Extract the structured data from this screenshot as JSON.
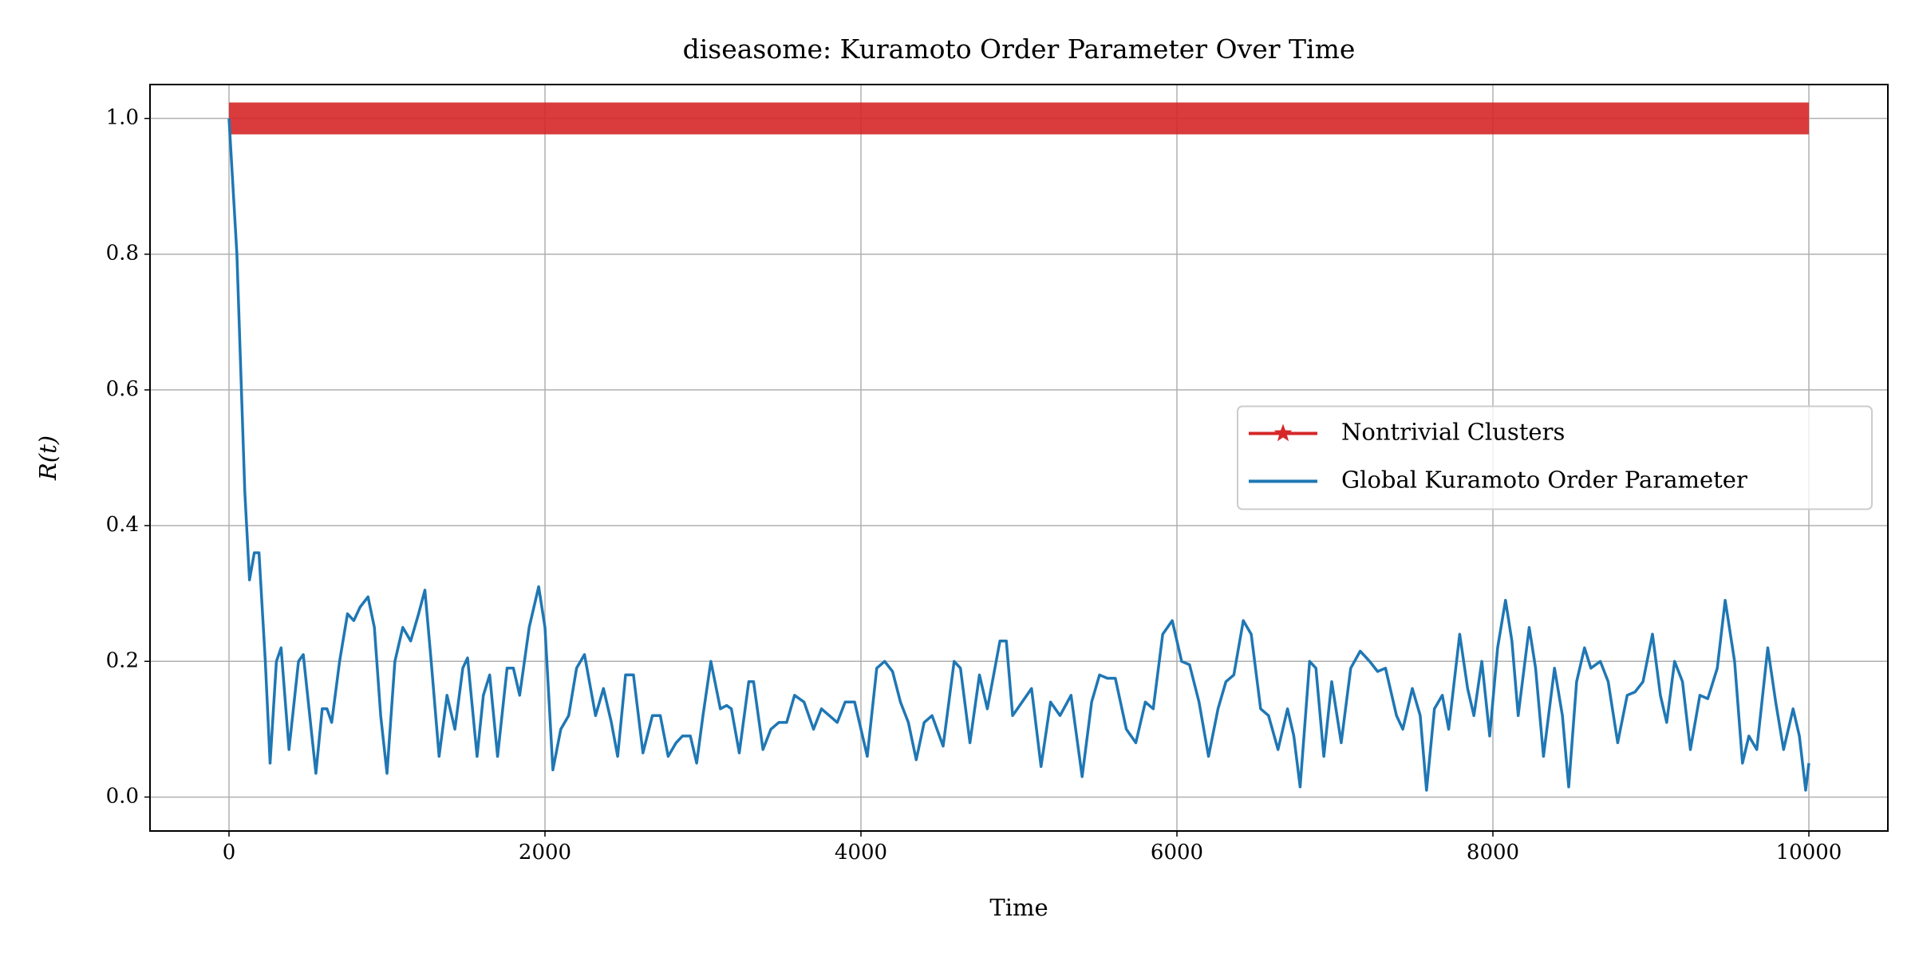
{
  "chart_data": {
    "type": "line",
    "title": "diseasome: Kuramoto Order Parameter Over Time",
    "xlabel": "Time",
    "ylabel": "R(t)",
    "xlim": [
      -500,
      10500
    ],
    "xticks": [
      0,
      2000,
      4000,
      6000,
      8000,
      10000
    ],
    "ylim": [
      -0.05,
      1.05
    ],
    "yticks": [
      {
        "value": 0,
        "label": "0.0"
      },
      0.2,
      0.4,
      0.6,
      0.8,
      {
        "value": 1,
        "label": "1.0"
      }
    ],
    "grid": true,
    "legend": "center right",
    "series": [
      {
        "name": "Nontrivial Clusters",
        "color": "#d62728",
        "x": [
          0,
          10000
        ],
        "values": [
          1,
          1
        ]
      },
      {
        "name": "Global Kuramoto Order Parameter",
        "color": "#1f77b4",
        "x": [
          0,
          50,
          100,
          130,
          160,
          190,
          230,
          260,
          300,
          330,
          380,
          440,
          470,
          520,
          550,
          590,
          620,
          650,
          700,
          750,
          790,
          830,
          880,
          920,
          960,
          1000,
          1050,
          1100,
          1150,
          1200,
          1240,
          1280,
          1330,
          1380,
          1430,
          1480,
          1510,
          1570,
          1610,
          1650,
          1700,
          1760,
          1800,
          1840,
          1900,
          1960,
          2000,
          2050,
          2100,
          2150,
          2200,
          2250,
          2320,
          2370,
          2420,
          2460,
          2510,
          2560,
          2620,
          2680,
          2730,
          2780,
          2830,
          2870,
          2920,
          2960,
          3000,
          3050,
          3110,
          3150,
          3180,
          3230,
          3290,
          3320,
          3380,
          3430,
          3480,
          3530,
          3580,
          3640,
          3700,
          3750,
          3800,
          3850,
          3900,
          3960,
          4040,
          4100,
          4150,
          4200,
          4250,
          4300,
          4350,
          4400,
          4450,
          4520,
          4590,
          4630,
          4690,
          4750,
          4800,
          4880,
          4920,
          4960,
          5020,
          5080,
          5140,
          5200,
          5260,
          5330,
          5400,
          5460,
          5510,
          5560,
          5610,
          5680,
          5740,
          5800,
          5850,
          5910,
          5970,
          6030,
          6080,
          6140,
          6200,
          6260,
          6310,
          6360,
          6420,
          6470,
          6530,
          6580,
          6640,
          6700,
          6740,
          6780,
          6840,
          6880,
          6930,
          6980,
          7040,
          7100,
          7160,
          7220,
          7270,
          7320,
          7390,
          7430,
          7490,
          7540,
          7580,
          7630,
          7680,
          7720,
          7790,
          7840,
          7880,
          7930,
          7980,
          8030,
          8080,
          8120,
          8160,
          8230,
          8270,
          8320,
          8390,
          8440,
          8480,
          8530,
          8580,
          8620,
          8680,
          8730,
          8790,
          8850,
          8900,
          8950,
          9010,
          9060,
          9100,
          9150,
          9200,
          9250,
          9310,
          9360,
          9420,
          9470,
          9530,
          9580,
          9620,
          9670,
          9740,
          9790,
          9840,
          9900,
          9940,
          9980,
          10000
        ],
        "values": [
          1.0,
          0.8,
          0.45,
          0.32,
          0.36,
          0.36,
          0.2,
          0.05,
          0.2,
          0.22,
          0.07,
          0.2,
          0.21,
          0.1,
          0.035,
          0.13,
          0.13,
          0.11,
          0.2,
          0.27,
          0.26,
          0.28,
          0.295,
          0.25,
          0.12,
          0.035,
          0.2,
          0.25,
          0.23,
          0.27,
          0.305,
          0.2,
          0.06,
          0.15,
          0.1,
          0.19,
          0.205,
          0.06,
          0.15,
          0.18,
          0.06,
          0.19,
          0.19,
          0.15,
          0.25,
          0.31,
          0.25,
          0.04,
          0.1,
          0.12,
          0.19,
          0.21,
          0.12,
          0.16,
          0.11,
          0.06,
          0.18,
          0.18,
          0.065,
          0.12,
          0.12,
          0.06,
          0.08,
          0.09,
          0.09,
          0.05,
          0.12,
          0.2,
          0.13,
          0.135,
          0.13,
          0.065,
          0.17,
          0.17,
          0.07,
          0.1,
          0.11,
          0.11,
          0.15,
          0.14,
          0.1,
          0.13,
          0.12,
          0.11,
          0.14,
          0.14,
          0.06,
          0.19,
          0.2,
          0.185,
          0.14,
          0.11,
          0.055,
          0.11,
          0.12,
          0.075,
          0.2,
          0.19,
          0.08,
          0.18,
          0.13,
          0.23,
          0.23,
          0.12,
          0.14,
          0.16,
          0.045,
          0.14,
          0.12,
          0.15,
          0.03,
          0.14,
          0.18,
          0.175,
          0.175,
          0.1,
          0.08,
          0.14,
          0.13,
          0.24,
          0.26,
          0.2,
          0.195,
          0.14,
          0.06,
          0.13,
          0.17,
          0.18,
          0.26,
          0.24,
          0.13,
          0.12,
          0.07,
          0.13,
          0.09,
          0.015,
          0.2,
          0.19,
          0.06,
          0.17,
          0.08,
          0.19,
          0.215,
          0.2,
          0.185,
          0.19,
          0.12,
          0.1,
          0.16,
          0.12,
          0.01,
          0.13,
          0.15,
          0.1,
          0.24,
          0.16,
          0.12,
          0.2,
          0.09,
          0.22,
          0.29,
          0.23,
          0.12,
          0.25,
          0.19,
          0.06,
          0.19,
          0.12,
          0.015,
          0.17,
          0.22,
          0.19,
          0.2,
          0.17,
          0.08,
          0.15,
          0.155,
          0.17,
          0.24,
          0.15,
          0.11,
          0.2,
          0.17,
          0.07,
          0.15,
          0.145,
          0.19,
          0.29,
          0.2,
          0.05,
          0.09,
          0.07,
          0.22,
          0.14,
          0.07,
          0.13,
          0.09,
          0.01,
          0.05
        ]
      }
    ]
  }
}
